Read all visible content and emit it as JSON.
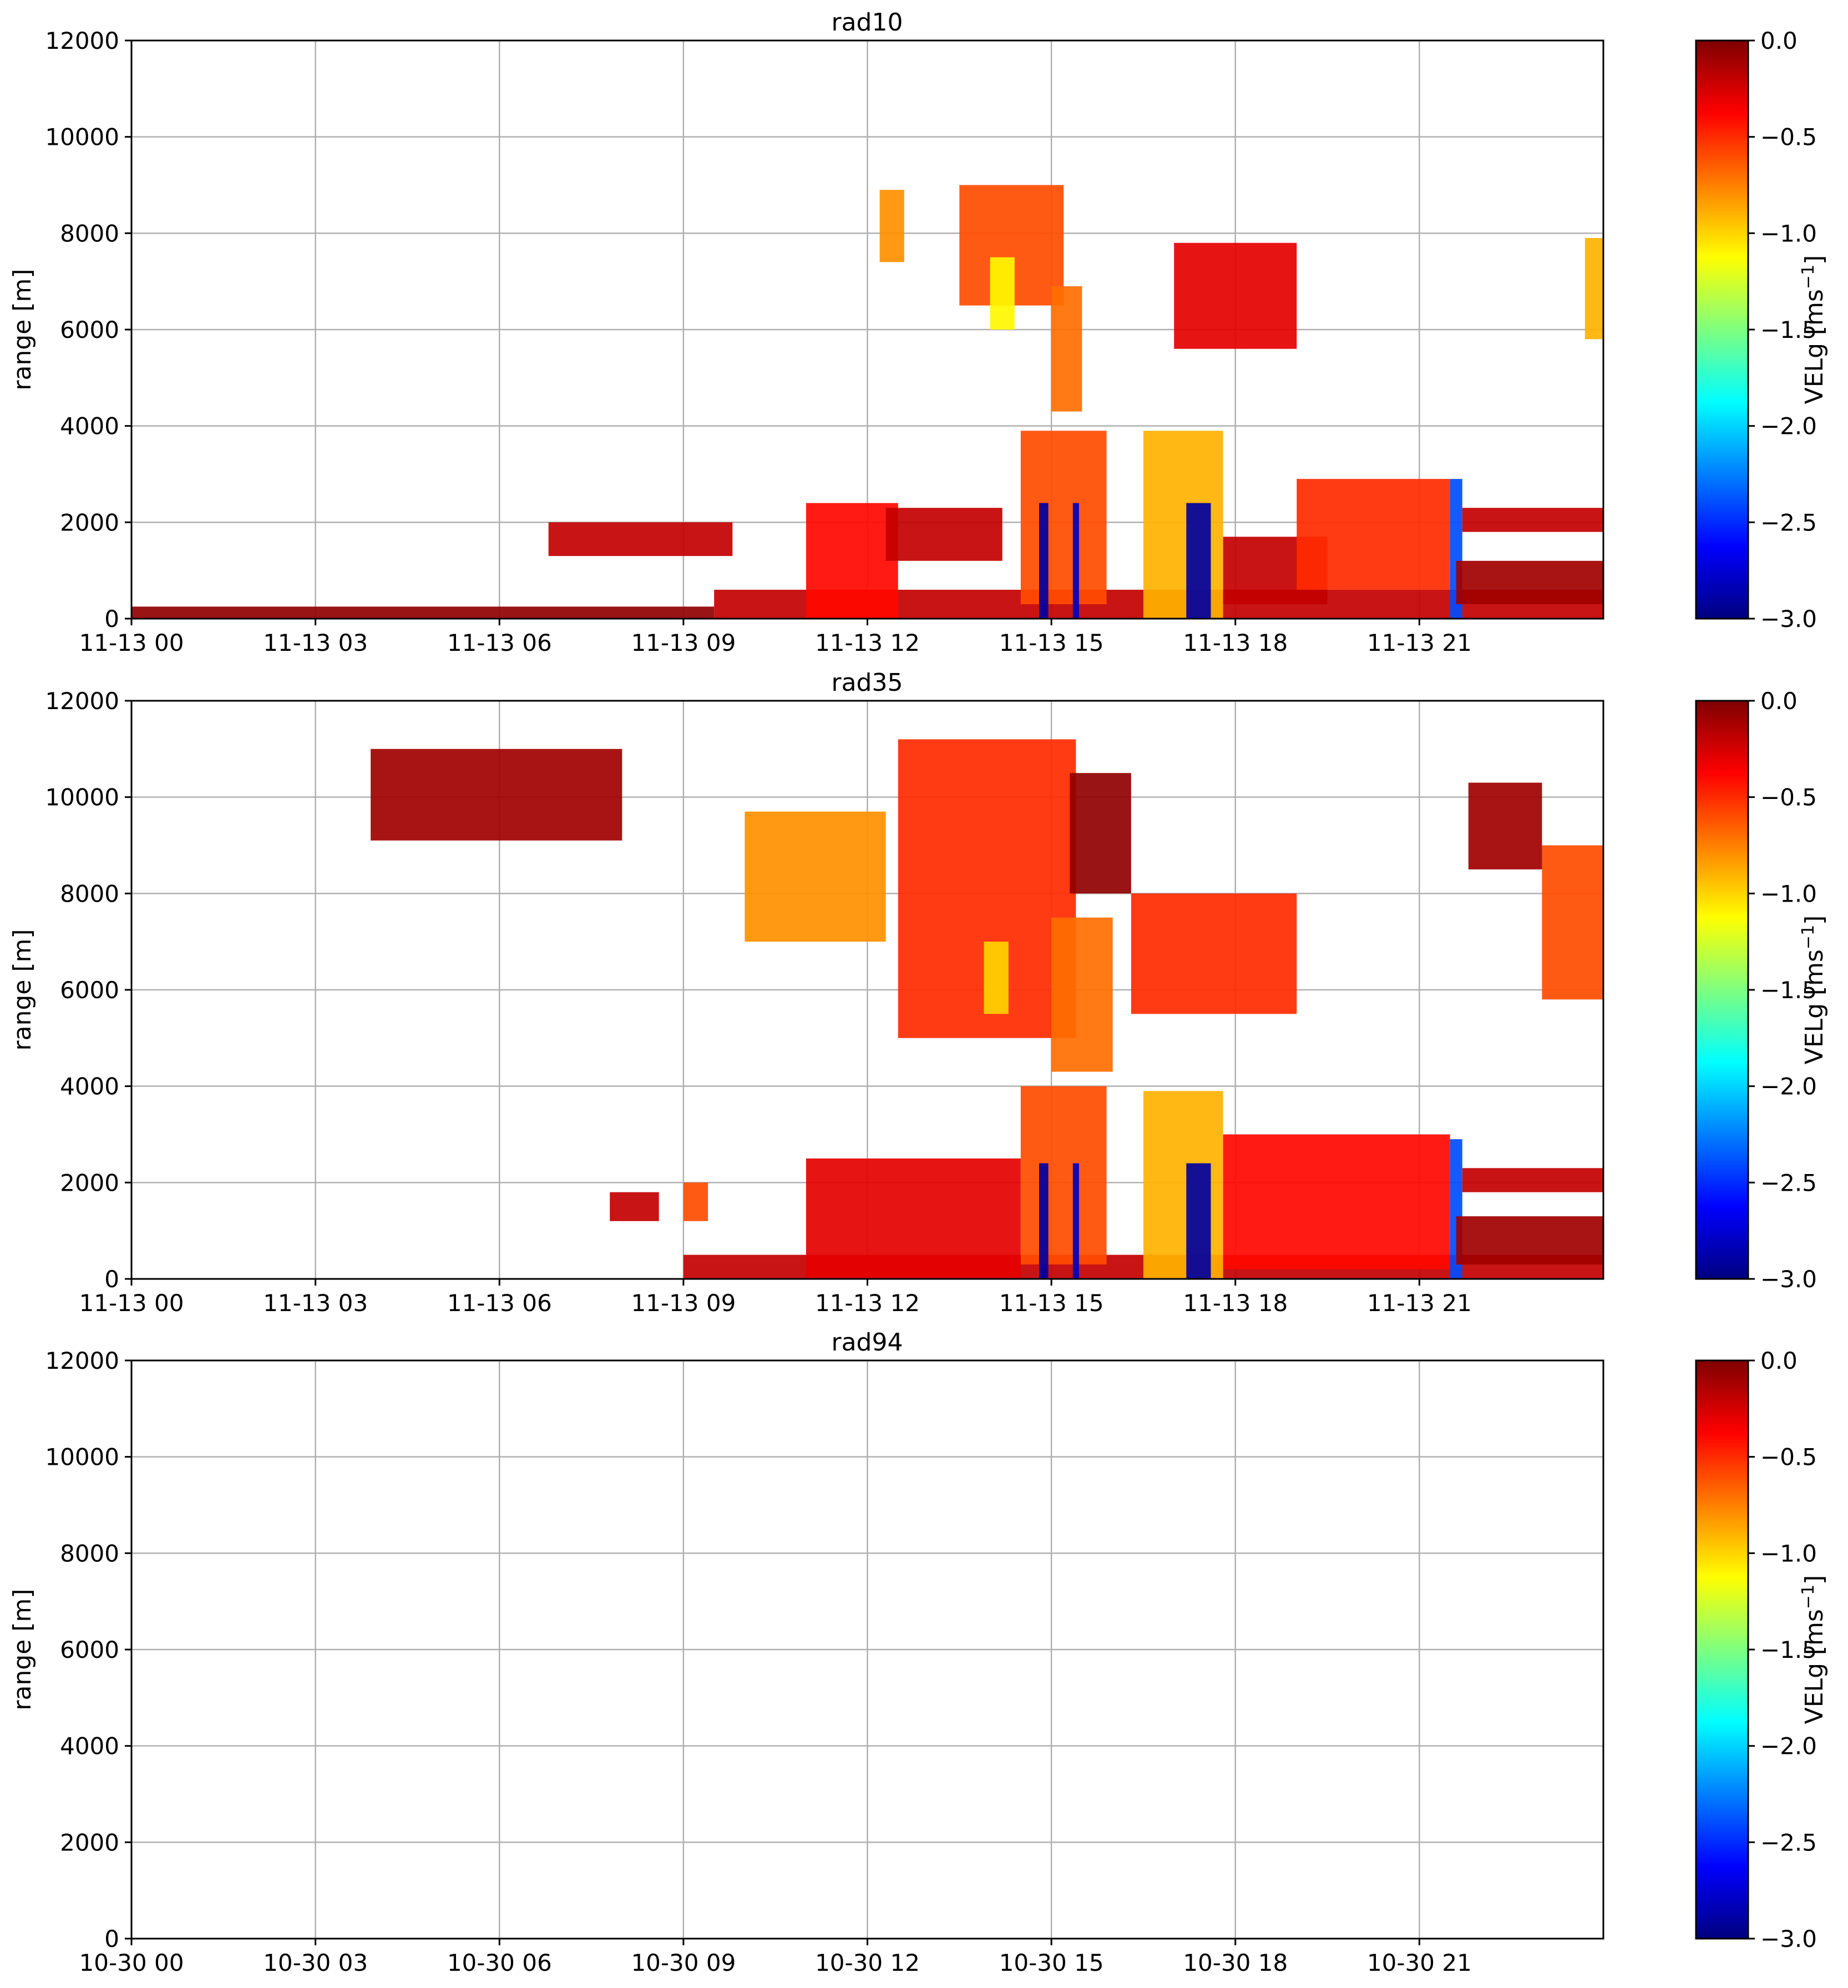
{
  "figure": {
    "colors": {
      "colormap": [
        "#00007f",
        "#0000ff",
        "#007fff",
        "#00ffff",
        "#7fff7f",
        "#ffff00",
        "#ff7f00",
        "#ff0000",
        "#7f0000"
      ],
      "grid": "#b0b0b0"
    }
  },
  "chart_data": [
    {
      "type": "heatmap",
      "title": "rad10",
      "ylabel": "range [m]",
      "ylim": [
        0,
        12000
      ],
      "yticks": [
        "0",
        "2000",
        "4000",
        "6000",
        "8000",
        "10000",
        "12000"
      ],
      "xlim_hours": [
        0,
        24
      ],
      "xtick_labels": [
        "11-13 00",
        "11-13 03",
        "11-13 06",
        "11-13 09",
        "11-13 12",
        "11-13 15",
        "11-13 18",
        "11-13 21"
      ],
      "grid": true,
      "colorbar": {
        "label": "VELg [ms",
        "label_sup": "−1",
        "label_end": "]",
        "range": [
          -3.0,
          0.0
        ],
        "ticks": [
          "0.0",
          "−0.5",
          "−1.0",
          "−1.5",
          "−2.0",
          "−2.5",
          "−3.0"
        ]
      },
      "regions": [
        {
          "t": [
            0.0,
            9.5
          ],
          "r": [
            0,
            250
          ],
          "v": -0.05
        },
        {
          "t": [
            6.8,
            9.8
          ],
          "r": [
            1300,
            2000
          ],
          "v": -0.2
        },
        {
          "t": [
            9.5,
            24.0
          ],
          "r": [
            0,
            600
          ],
          "v": -0.2
        },
        {
          "t": [
            11.0,
            12.5
          ],
          "r": [
            0,
            2400
          ],
          "v": -0.4
        },
        {
          "t": [
            12.3,
            14.2
          ],
          "r": [
            1200,
            2300
          ],
          "v": -0.2
        },
        {
          "t": [
            12.2,
            12.6
          ],
          "r": [
            7400,
            8900
          ],
          "v": -0.8
        },
        {
          "t": [
            13.5,
            15.2
          ],
          "r": [
            6500,
            9000
          ],
          "v": -0.6
        },
        {
          "t": [
            14.0,
            14.4
          ],
          "r": [
            6000,
            7500
          ],
          "v": -1.1
        },
        {
          "t": [
            15.0,
            15.5
          ],
          "r": [
            4300,
            6900
          ],
          "v": -0.7
        },
        {
          "t": [
            14.5,
            15.9
          ],
          "r": [
            300,
            3900
          ],
          "v": -0.6
        },
        {
          "t": [
            14.8,
            14.95
          ],
          "r": [
            0,
            2400
          ],
          "v": -2.9
        },
        {
          "t": [
            15.35,
            15.45
          ],
          "r": [
            0,
            2400
          ],
          "v": -2.8
        },
        {
          "t": [
            16.5,
            17.8
          ],
          "r": [
            0,
            3900
          ],
          "v": -0.9
        },
        {
          "t": [
            17.2,
            17.6
          ],
          "r": [
            0,
            2400
          ],
          "v": -2.9
        },
        {
          "t": [
            17.0,
            19.0
          ],
          "r": [
            5600,
            7800
          ],
          "v": -0.3
        },
        {
          "t": [
            17.8,
            19.5
          ],
          "r": [
            300,
            1700
          ],
          "v": -0.2
        },
        {
          "t": [
            19.0,
            21.5
          ],
          "r": [
            600,
            2900
          ],
          "v": -0.5
        },
        {
          "t": [
            21.5,
            21.7
          ],
          "r": [
            0,
            2900
          ],
          "v": -2.4
        },
        {
          "t": [
            21.7,
            24.0
          ],
          "r": [
            1800,
            2300
          ],
          "v": -0.2
        },
        {
          "t": [
            21.6,
            24.0
          ],
          "r": [
            300,
            1200
          ],
          "v": -0.1
        },
        {
          "t": [
            23.7,
            24.0
          ],
          "r": [
            5800,
            7900
          ],
          "v": -0.9
        }
      ]
    },
    {
      "type": "heatmap",
      "title": "rad35",
      "ylabel": "range [m]",
      "ylim": [
        0,
        12000
      ],
      "yticks": [
        "0",
        "2000",
        "4000",
        "6000",
        "8000",
        "10000",
        "12000"
      ],
      "xlim_hours": [
        0,
        24
      ],
      "xtick_labels": [
        "11-13 00",
        "11-13 03",
        "11-13 06",
        "11-13 09",
        "11-13 12",
        "11-13 15",
        "11-13 18",
        "11-13 21"
      ],
      "grid": true,
      "colorbar": {
        "label": "VELg [ms",
        "label_sup": "−1",
        "label_end": "]",
        "range": [
          -3.0,
          0.0
        ],
        "ticks": [
          "0.0",
          "−0.5",
          "−1.0",
          "−1.5",
          "−2.0",
          "−2.5",
          "−3.0"
        ]
      },
      "regions": [
        {
          "t": [
            3.9,
            8.0
          ],
          "r": [
            9100,
            11000
          ],
          "v": -0.1
        },
        {
          "t": [
            7.8,
            8.6
          ],
          "r": [
            1200,
            1800
          ],
          "v": -0.2
        },
        {
          "t": [
            9.0,
            9.4
          ],
          "r": [
            1200,
            2000
          ],
          "v": -0.6
        },
        {
          "t": [
            9.0,
            24.0
          ],
          "r": [
            0,
            500
          ],
          "v": -0.2
        },
        {
          "t": [
            10.0,
            12.3
          ],
          "r": [
            7000,
            9700
          ],
          "v": -0.8
        },
        {
          "t": [
            12.5,
            15.4
          ],
          "r": [
            5000,
            11200
          ],
          "v": -0.5
        },
        {
          "t": [
            13.9,
            14.3
          ],
          "r": [
            5500,
            7000
          ],
          "v": -1.0
        },
        {
          "t": [
            15.3,
            16.3
          ],
          "r": [
            8000,
            10500
          ],
          "v": -0.05
        },
        {
          "t": [
            15.0,
            16.0
          ],
          "r": [
            4300,
            7500
          ],
          "v": -0.7
        },
        {
          "t": [
            16.3,
            19.0
          ],
          "r": [
            5500,
            8000
          ],
          "v": -0.5
        },
        {
          "t": [
            11.0,
            14.5
          ],
          "r": [
            0,
            2500
          ],
          "v": -0.3
        },
        {
          "t": [
            14.5,
            15.9
          ],
          "r": [
            300,
            4000
          ],
          "v": -0.6
        },
        {
          "t": [
            14.8,
            14.95
          ],
          "r": [
            0,
            2400
          ],
          "v": -2.9
        },
        {
          "t": [
            15.35,
            15.45
          ],
          "r": [
            0,
            2400
          ],
          "v": -2.8
        },
        {
          "t": [
            16.5,
            17.8
          ],
          "r": [
            0,
            3900
          ],
          "v": -0.9
        },
        {
          "t": [
            17.2,
            17.6
          ],
          "r": [
            0,
            2400
          ],
          "v": -2.9
        },
        {
          "t": [
            17.8,
            21.5
          ],
          "r": [
            200,
            3000
          ],
          "v": -0.4
        },
        {
          "t": [
            21.5,
            21.7
          ],
          "r": [
            0,
            2900
          ],
          "v": -2.4
        },
        {
          "t": [
            21.7,
            24.0
          ],
          "r": [
            1800,
            2300
          ],
          "v": -0.2
        },
        {
          "t": [
            21.6,
            24.0
          ],
          "r": [
            300,
            1300
          ],
          "v": -0.1
        },
        {
          "t": [
            21.8,
            23.0
          ],
          "r": [
            8500,
            10300
          ],
          "v": -0.1
        },
        {
          "t": [
            23.0,
            24.0
          ],
          "r": [
            5800,
            9000
          ],
          "v": -0.6
        }
      ]
    },
    {
      "type": "heatmap",
      "title": "rad94",
      "ylabel": "range [m]",
      "ylim": [
        0,
        12000
      ],
      "yticks": [
        "0",
        "2000",
        "4000",
        "6000",
        "8000",
        "10000",
        "12000"
      ],
      "xlim_hours": [
        0,
        24
      ],
      "xtick_labels": [
        "10-30 00",
        "10-30 03",
        "10-30 06",
        "10-30 09",
        "10-30 12",
        "10-30 15",
        "10-30 18",
        "10-30 21"
      ],
      "grid": true,
      "colorbar": {
        "label": "VELg [ms",
        "label_sup": "−1",
        "label_end": "]",
        "range": [
          -3.0,
          0.0
        ],
        "ticks": [
          "0.0",
          "−0.5",
          "−1.0",
          "−1.5",
          "−2.0",
          "−2.5",
          "−3.0"
        ]
      },
      "regions": []
    }
  ]
}
